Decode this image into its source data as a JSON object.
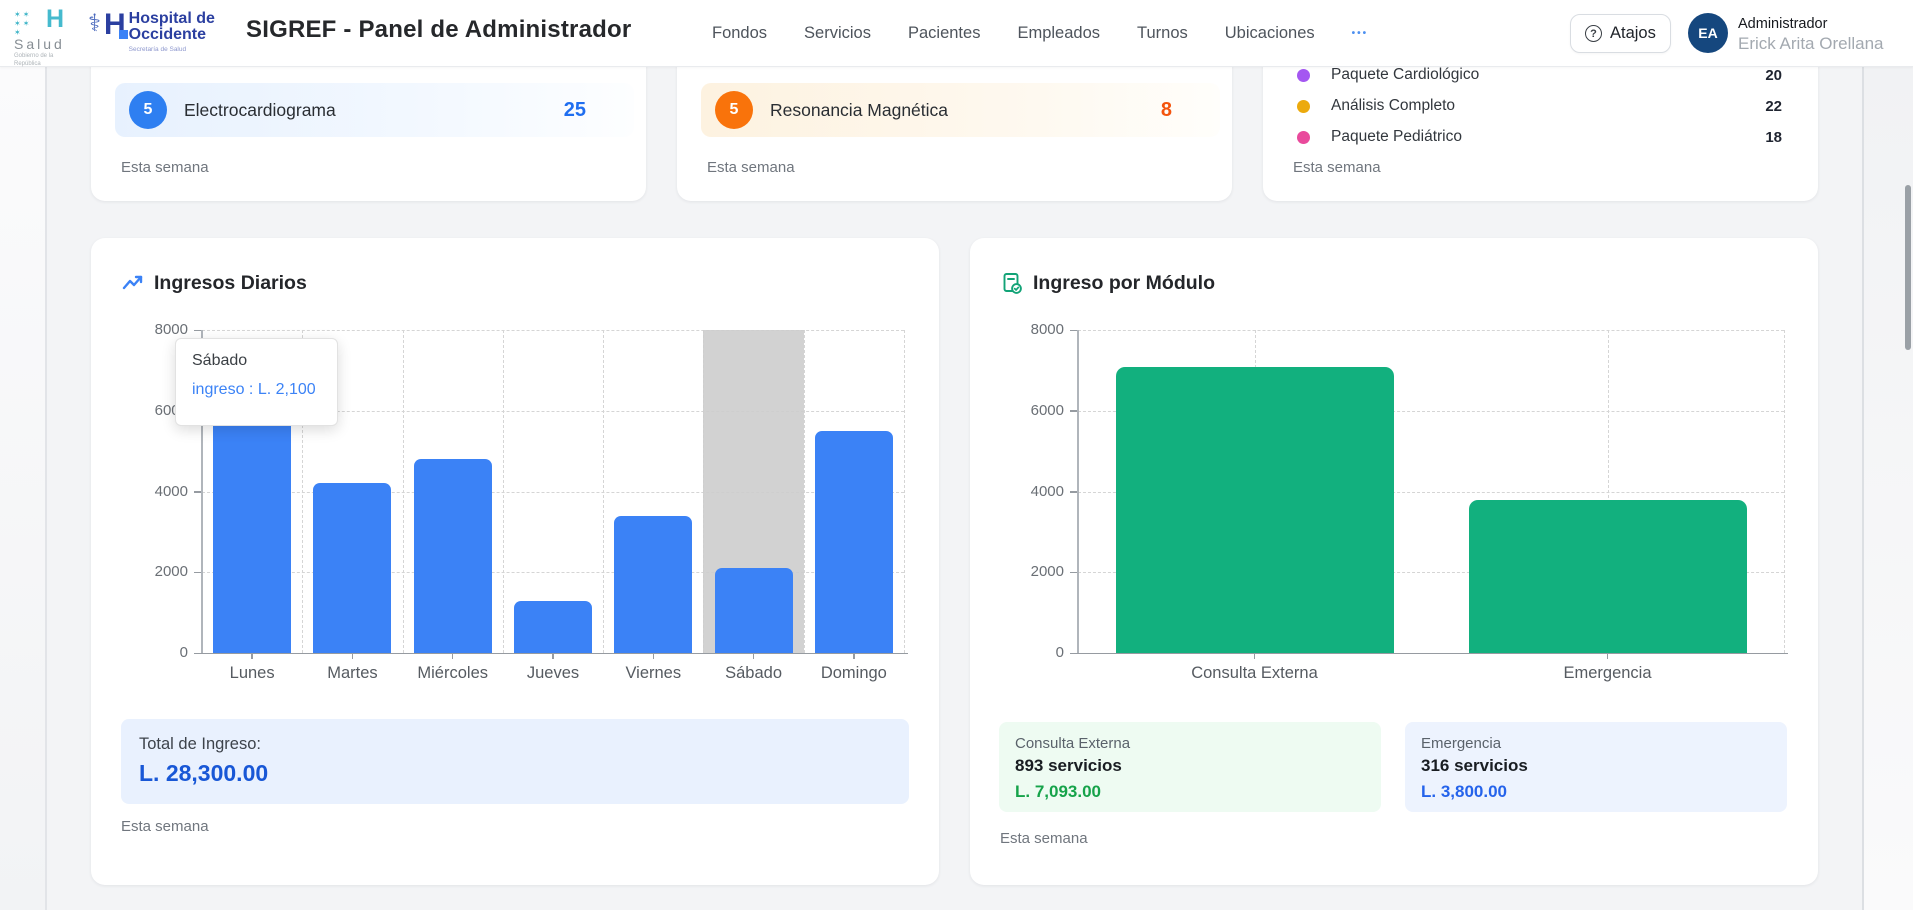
{
  "header": {
    "brand_salud": {
      "name": "Salud",
      "sub": "Gobierno de la República",
      "stars": "✶ ✶ ✶",
      "h": "H"
    },
    "brand_hospital": {
      "line1": "Hospital de",
      "line2": "Occidente",
      "sub": "Secretaría de Salud",
      "h": "H",
      "caduceus": "⚕"
    },
    "title": "SIGREF - Panel de Administrador",
    "nav": [
      {
        "label": "Fondos"
      },
      {
        "label": "Servicios"
      },
      {
        "label": "Pacientes"
      },
      {
        "label": "Empleados"
      },
      {
        "label": "Turnos"
      },
      {
        "label": "Ubicaciones"
      }
    ],
    "more_label": "•••",
    "shortcut_button": "Atajos",
    "user": {
      "initials": "EA",
      "role": "Administrador",
      "name": "Erick Arita Orellana"
    }
  },
  "top_cards": [
    {
      "badge": "5",
      "label": "Electrocardiograma",
      "value": "25",
      "footer": "Esta semana"
    },
    {
      "badge": "5",
      "label": "Resonancia Magnética",
      "value": "8",
      "footer": "Esta semana"
    },
    {
      "items": [
        {
          "label": "Paquete Cardiológico",
          "value": "20",
          "color": "#a457f1"
        },
        {
          "label": "Análisis Completo",
          "value": "22",
          "color": "#ecaa0d"
        },
        {
          "label": "Paquete Pediátrico",
          "value": "18",
          "color": "#e94a9c"
        }
      ],
      "footer": "Esta semana"
    }
  ],
  "chart_data": [
    {
      "type": "bar",
      "title": "Ingresos Diarios",
      "categories": [
        "Lunes",
        "Martes",
        "Miércoles",
        "Jueves",
        "Viernes",
        "Sábado",
        "Domingo"
      ],
      "series": [
        {
          "name": "ingreso",
          "values": [
            7000,
            4200,
            4800,
            1300,
            3400,
            2100,
            5500
          ]
        }
      ],
      "ylim": [
        0,
        8000
      ],
      "yticks": [
        0,
        2000,
        4000,
        6000,
        8000
      ],
      "bar_color": "#3b82f6",
      "grid": "dashed",
      "hover_index": 5,
      "tooltip": {
        "title": "Sábado",
        "text": "ingreso : L. 2,100"
      },
      "total_label": "Total de Ingreso:",
      "total_value": "L. 28,300.00",
      "footer": "Esta semana"
    },
    {
      "type": "bar",
      "title": "Ingreso por Módulo",
      "categories": [
        "Consulta Externa",
        "Emergencia"
      ],
      "series": [
        {
          "name": "ingreso",
          "values": [
            7093,
            3800
          ]
        }
      ],
      "ylim": [
        0,
        8000
      ],
      "yticks": [
        0,
        2000,
        4000,
        6000,
        8000
      ],
      "bar_color": "#12b07e",
      "grid": "dashed",
      "stats": [
        {
          "label": "Consulta Externa",
          "services": "893 servicios",
          "amount": "L. 7,093.00",
          "amount_color": "#16a34a",
          "bg": "#eefbf2"
        },
        {
          "label": "Emergencia",
          "services": "316 servicios",
          "amount": "L. 3,800.00",
          "amount_color": "#2563eb",
          "bg": "#edf3fe"
        }
      ],
      "footer": "Esta semana"
    }
  ]
}
